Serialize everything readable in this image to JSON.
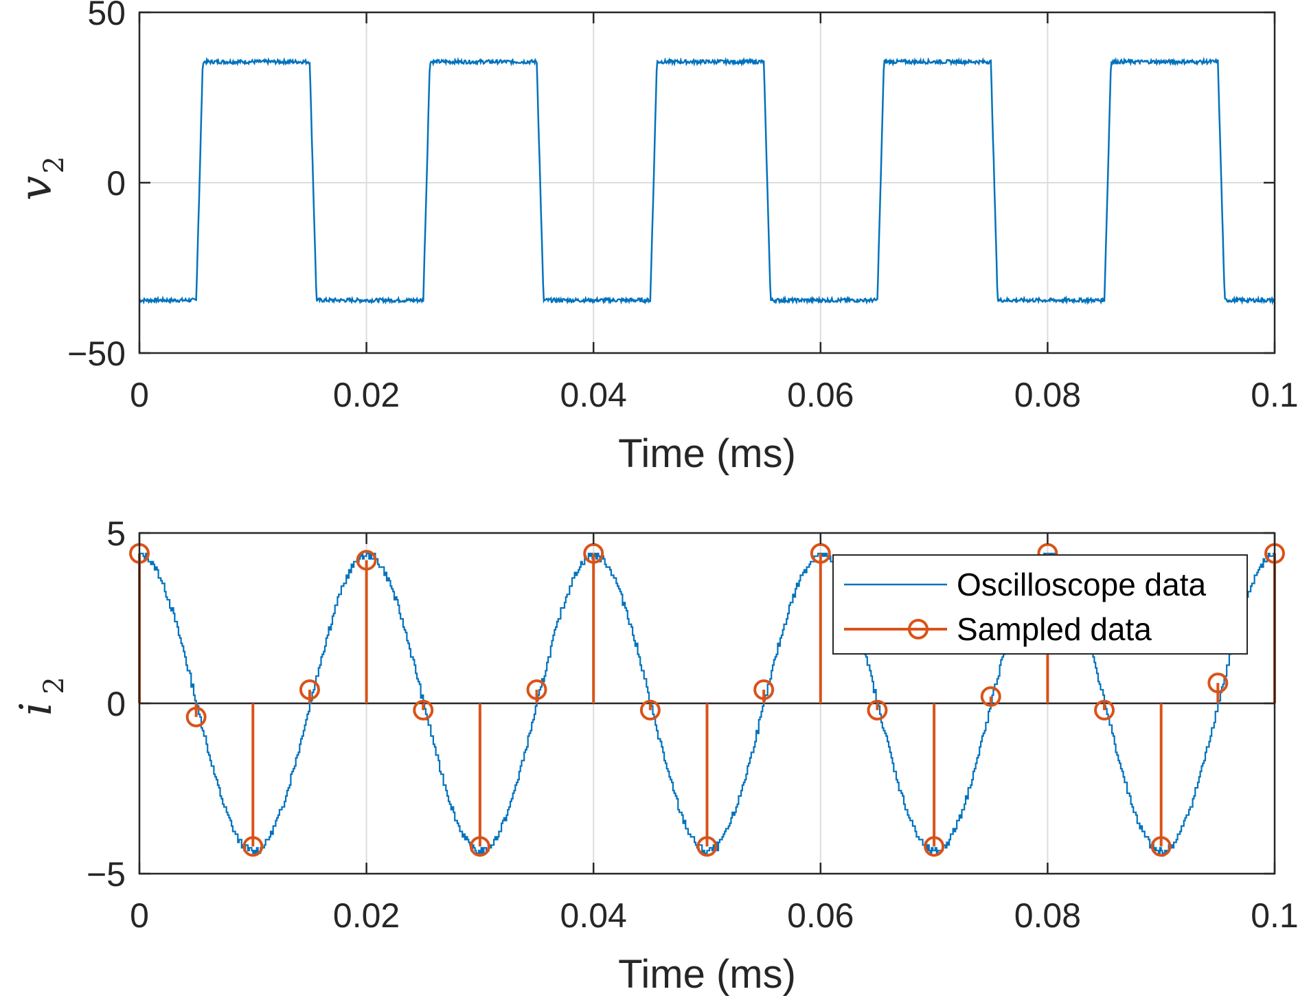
{
  "chart_data": [
    {
      "type": "line",
      "xlabel": "Time (ms)",
      "ylabel": {
        "main": "v",
        "sub": "2"
      },
      "xlim": [
        0,
        0.1
      ],
      "ylim": [
        -50,
        50
      ],
      "xticks": [
        "0",
        "0.02",
        "0.04",
        "0.06",
        "0.08",
        "0.1"
      ],
      "yticks": [
        "50",
        "0",
        "−50"
      ],
      "xtick_values": [
        0,
        0.02,
        0.04,
        0.06,
        0.08,
        0.1
      ],
      "ytick_values": [
        50,
        0,
        -50
      ],
      "grid": true,
      "series": [
        {
          "kind": "square-wave",
          "high": 35.5,
          "low": -34.5,
          "rise_times": [
            0.005,
            0.025,
            0.045,
            0.065,
            0.085
          ],
          "fall_times": [
            0.015,
            0.035,
            0.055,
            0.075,
            0.095
          ],
          "color": "#0072BD"
        }
      ]
    },
    {
      "type": "line",
      "xlabel": "Time (ms)",
      "ylabel": {
        "main": "i",
        "sub": "2"
      },
      "xlim": [
        0,
        0.1
      ],
      "ylim": [
        -5,
        5
      ],
      "xticks": [
        "0",
        "0.02",
        "0.04",
        "0.06",
        "0.08",
        "0.1"
      ],
      "yticks": [
        "5",
        "0",
        "−5"
      ],
      "xtick_values": [
        0,
        0.02,
        0.04,
        0.06,
        0.08,
        0.1
      ],
      "ytick_values": [
        5,
        0,
        -5
      ],
      "grid": true,
      "legend": {
        "position": "top-right",
        "entries": [
          "Oscilloscope data",
          "Sampled data"
        ]
      },
      "series": [
        {
          "name": "Oscilloscope data",
          "kind": "sine",
          "amplitude": 4.35,
          "period": 0.02,
          "phase_peak_at": 0,
          "color": "#0072BD"
        },
        {
          "name": "Sampled data",
          "kind": "stem",
          "color": "#D95319",
          "x": [
            0,
            0.005,
            0.01,
            0.015,
            0.02,
            0.025,
            0.03,
            0.035,
            0.04,
            0.045,
            0.05,
            0.055,
            0.06,
            0.065,
            0.07,
            0.075,
            0.08,
            0.085,
            0.09,
            0.095,
            0.1
          ],
          "y": [
            4.4,
            -0.4,
            -4.2,
            0.4,
            4.2,
            -0.2,
            -4.2,
            0.4,
            4.4,
            -0.2,
            -4.2,
            0.4,
            4.4,
            -0.2,
            -4.2,
            0.2,
            4.4,
            -0.2,
            -4.2,
            0.6,
            4.4
          ]
        }
      ]
    }
  ]
}
